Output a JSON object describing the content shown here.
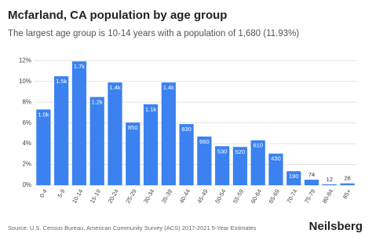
{
  "chart_data": {
    "type": "bar",
    "title": "Mcfarland, CA population by age group",
    "subtitle": "The largest age group is 10-14 years with a population of 1,680 (11.93%)",
    "categories": [
      "0-4",
      "5-9",
      "10-14",
      "15-19",
      "20-24",
      "25-29",
      "30-34",
      "35-39",
      "40-44",
      "45-49",
      "50-54",
      "55-59",
      "60-64",
      "65-69",
      "70-74",
      "75-79",
      "80-84",
      "85+"
    ],
    "values": [
      7.3,
      10.5,
      11.93,
      8.5,
      9.9,
      6.04,
      7.8,
      9.9,
      5.89,
      4.69,
      3.76,
      3.69,
      4.33,
      3.05,
      1.35,
      0.53,
      0.09,
      0.18
    ],
    "bar_labels": [
      "1.0k",
      "1.5k",
      "1.7k",
      "1.2k",
      "1.4k",
      "850",
      "1.1k",
      "1.4k",
      "830",
      "660",
      "530",
      "520",
      "610",
      "430",
      "190",
      "74",
      "12",
      "26"
    ],
    "color": "#3b82f0",
    "ylim": [
      0,
      12.4
    ],
    "yticks": [
      {
        "value": 0,
        "label": "0%"
      },
      {
        "value": 2,
        "label": "2%"
      },
      {
        "value": 4,
        "label": "4%"
      },
      {
        "value": 6,
        "label": "6%"
      },
      {
        "value": 8,
        "label": "8%"
      },
      {
        "value": 10,
        "label": "10%"
      },
      {
        "value": 12,
        "label": "12%"
      }
    ],
    "grid": true,
    "source": "Source: U.S. Census Bureau, American Community Survey (ACS) 2017-2021 5-Year Estimates",
    "brand": "Neilsberg"
  }
}
